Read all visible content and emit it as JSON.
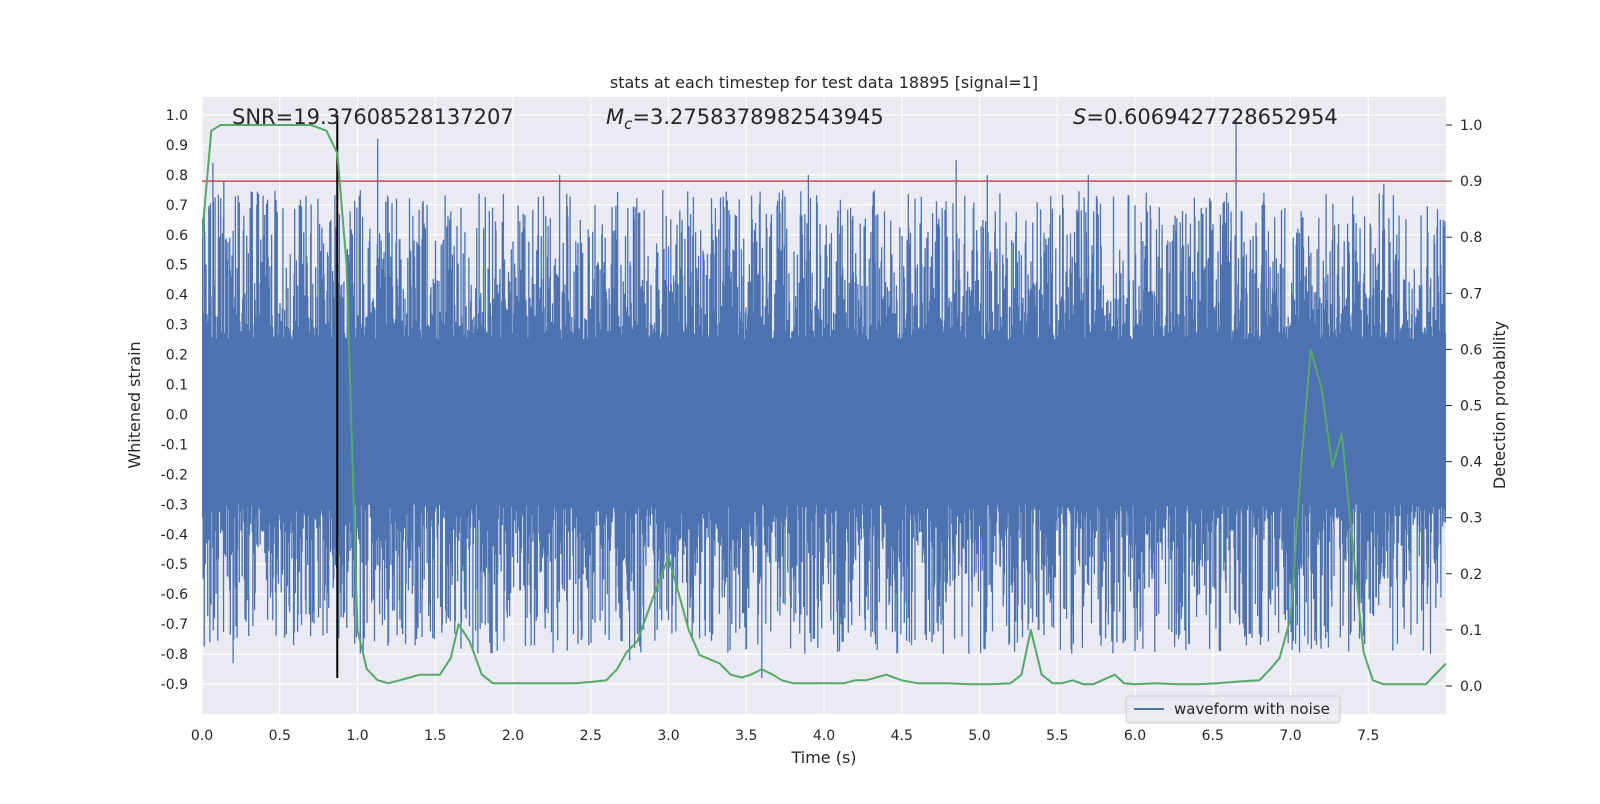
{
  "chart_data": {
    "type": "line",
    "title": "stats at each timestep for test data 18895 [signal=1]",
    "xlabel": "Time (s)",
    "ylabel_left": "Whitened strain",
    "ylabel_right": "Detection probability",
    "xlim": [
      0,
      8
    ],
    "ylim_left": [
      -1.0,
      1.06
    ],
    "ylim_right": [
      -0.05,
      1.05
    ],
    "x_ticks": [
      "0.0",
      "0.5",
      "1.0",
      "1.5",
      "2.0",
      "2.5",
      "3.0",
      "3.5",
      "4.0",
      "4.5",
      "5.0",
      "5.5",
      "6.0",
      "6.5",
      "7.0",
      "7.5"
    ],
    "x_tick_values": [
      0,
      0.5,
      1,
      1.5,
      2,
      2.5,
      3,
      3.5,
      4,
      4.5,
      5,
      5.5,
      6,
      6.5,
      7,
      7.5
    ],
    "y_ticks_left": [
      "1.0",
      "0.9",
      "0.8",
      "0.7",
      "0.6",
      "0.5",
      "0.4",
      "0.3",
      "0.2",
      "0.1",
      "0.0",
      "-0.1",
      "-0.2",
      "-0.3",
      "-0.4",
      "-0.5",
      "-0.6",
      "-0.7",
      "-0.8",
      "-0.9"
    ],
    "y_tick_values_left": [
      1.0,
      0.9,
      0.8,
      0.7,
      0.6,
      0.5,
      0.4,
      0.3,
      0.2,
      0.1,
      0.0,
      -0.1,
      -0.2,
      -0.3,
      -0.4,
      -0.5,
      -0.6,
      -0.7,
      -0.8,
      -0.9
    ],
    "y_ticks_right": [
      "1.0",
      "0.9",
      "0.8",
      "0.7",
      "0.6",
      "0.5",
      "0.4",
      "0.3",
      "0.2",
      "0.1",
      "0.0"
    ],
    "y_tick_values_right": [
      1.0,
      0.9,
      0.8,
      0.7,
      0.6,
      0.5,
      0.4,
      0.3,
      0.2,
      0.1,
      0.0
    ],
    "annotations": {
      "snr": "SNR=19.37608528137207",
      "mc_symbol": "M",
      "mc_subscript": "c",
      "mc_value": "=3.2758378982543945",
      "s_symbol": "S",
      "s_value": "=0.6069427728652954"
    },
    "legend": {
      "label": "waveform with noise",
      "placement": "lower-right"
    },
    "grid": true,
    "colors": {
      "waveform": "#4c72b0",
      "probability": "#55a868",
      "threshold": "#c44e52",
      "marker": "#000000",
      "axes_background": "#eaeaf2",
      "grid": "#ffffff"
    },
    "threshold_probability": 0.9,
    "merger_marker_time": 0.87,
    "waveform": {
      "description_only_in_visual": true,
      "envelope_core": [
        -0.3,
        0.25
      ],
      "upper_spikes": [
        [
          0.07,
          0.84
        ],
        [
          0.14,
          0.78
        ],
        [
          1.13,
          0.92
        ],
        [
          2.3,
          0.8
        ],
        [
          3.9,
          0.8
        ],
        [
          4.85,
          0.85
        ],
        [
          5.05,
          0.8
        ],
        [
          5.7,
          0.8
        ],
        [
          6.65,
          0.99
        ],
        [
          7.6,
          0.77
        ]
      ],
      "lower_spikes": [
        [
          0.2,
          -0.83
        ],
        [
          0.3,
          -0.74
        ],
        [
          1.38,
          -0.75
        ],
        [
          2.75,
          -0.82
        ],
        [
          3.6,
          -0.88
        ],
        [
          4.1,
          -0.79
        ],
        [
          6.0,
          -0.79
        ],
        [
          6.55,
          -0.79
        ],
        [
          7.9,
          -0.8
        ]
      ]
    },
    "series": [
      {
        "name": "",
        "axis": "right",
        "x": [
          0,
          0.06,
          0.12,
          0.2,
          0.3,
          0.4,
          0.5,
          0.6,
          0.7,
          0.8,
          0.87,
          0.93,
          1.0,
          1.06,
          1.13,
          1.2,
          1.27,
          1.4,
          1.53,
          1.6,
          1.65,
          1.72,
          1.8,
          1.87,
          2.0,
          2.13,
          2.27,
          2.4,
          2.53,
          2.6,
          2.67,
          2.73,
          2.8,
          2.93,
          3.0,
          3.07,
          3.13,
          3.2,
          3.33,
          3.4,
          3.47,
          3.53,
          3.6,
          3.67,
          3.73,
          3.8,
          3.93,
          4.07,
          4.13,
          4.2,
          4.27,
          4.4,
          4.5,
          4.6,
          4.67,
          4.8,
          4.93,
          5.07,
          5.2,
          5.27,
          5.33,
          5.4,
          5.47,
          5.53,
          5.6,
          5.67,
          5.73,
          5.87,
          5.93,
          6.0,
          6.13,
          6.27,
          6.4,
          6.53,
          6.67,
          6.8,
          6.87,
          6.93,
          7.0,
          7.07,
          7.13,
          7.2,
          7.27,
          7.33,
          7.4,
          7.47,
          7.53,
          7.6,
          7.67,
          7.73,
          7.8,
          7.87,
          7.93,
          8.0
        ],
        "y": [
          0.8,
          0.99,
          1.0,
          1.0,
          1.0,
          1.0,
          1.0,
          1.0,
          1.0,
          0.99,
          0.95,
          0.75,
          0.1,
          0.03,
          0.01,
          0.005,
          0.01,
          0.02,
          0.02,
          0.05,
          0.11,
          0.08,
          0.02,
          0.005,
          0.005,
          0.005,
          0.005,
          0.005,
          0.008,
          0.01,
          0.03,
          0.06,
          0.08,
          0.18,
          0.23,
          0.16,
          0.1,
          0.055,
          0.04,
          0.02,
          0.015,
          0.02,
          0.03,
          0.02,
          0.01,
          0.005,
          0.005,
          0.005,
          0.005,
          0.01,
          0.01,
          0.02,
          0.01,
          0.005,
          0.005,
          0.005,
          0.003,
          0.003,
          0.005,
          0.02,
          0.1,
          0.02,
          0.005,
          0.005,
          0.01,
          0.003,
          0.003,
          0.02,
          0.005,
          0.003,
          0.005,
          0.003,
          0.003,
          0.005,
          0.008,
          0.01,
          0.03,
          0.05,
          0.12,
          0.4,
          0.6,
          0.53,
          0.39,
          0.45,
          0.25,
          0.06,
          0.01,
          0.003,
          0.003,
          0.003,
          0.003,
          0.003,
          0.02,
          0.04
        ]
      }
    ]
  }
}
